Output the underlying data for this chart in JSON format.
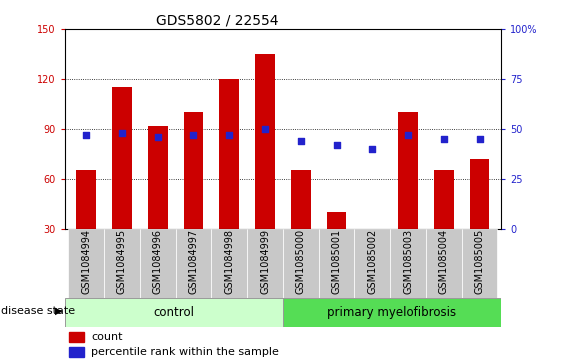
{
  "title": "GDS5802 / 22554",
  "samples": [
    "GSM1084994",
    "GSM1084995",
    "GSM1084996",
    "GSM1084997",
    "GSM1084998",
    "GSM1084999",
    "GSM1085000",
    "GSM1085001",
    "GSM1085002",
    "GSM1085003",
    "GSM1085004",
    "GSM1085005"
  ],
  "counts": [
    65,
    115,
    92,
    100,
    120,
    135,
    65,
    40,
    30,
    100,
    65,
    72
  ],
  "percentile_ranks": [
    47,
    48,
    46,
    47,
    47,
    50,
    44,
    42,
    40,
    47,
    45,
    45
  ],
  "ylim_left": [
    30,
    150
  ],
  "ylim_right": [
    0,
    100
  ],
  "yticks_left": [
    30,
    60,
    90,
    120,
    150
  ],
  "yticks_right": [
    0,
    25,
    50,
    75,
    100
  ],
  "bar_color": "#cc0000",
  "dot_color": "#2222cc",
  "control_color": "#ccffcc",
  "disease_color": "#55dd55",
  "xlabels_bg": "#c8c8c8",
  "title_fontsize": 10,
  "tick_label_fontsize": 7,
  "legend_fontsize": 8,
  "group_label_fontsize": 8.5,
  "disease_state_fontsize": 8
}
